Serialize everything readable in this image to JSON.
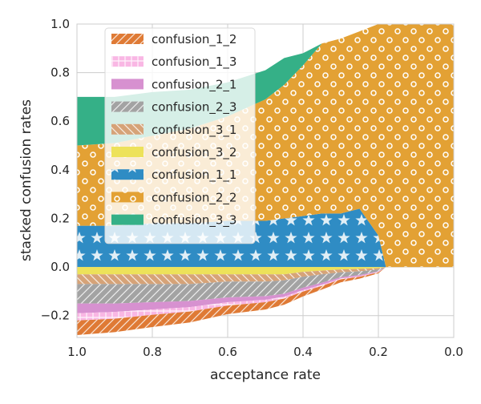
{
  "chart_data": {
    "type": "area",
    "subtype": "stacked area with positive and negative stacks",
    "xlabel": "acceptance rate",
    "ylabel": "stacked confusion rates",
    "xlim": [
      1.0,
      0.0
    ],
    "ylim": [
      -0.29,
      1.0
    ],
    "xticks": [
      1.0,
      0.8,
      0.6,
      0.4,
      0.2,
      0.0
    ],
    "xtick_labels": [
      "1.0",
      "0.8",
      "0.6",
      "0.4",
      "0.2",
      "0.0"
    ],
    "yticks": [
      -0.2,
      0.0,
      0.2,
      0.4,
      0.6,
      0.8,
      1.0
    ],
    "ytick_labels": [
      "−0.2",
      "0.0",
      "0.2",
      "0.4",
      "0.6",
      "0.8",
      "1.0"
    ],
    "grid": true,
    "legend_position": "upper-left",
    "x": [
      1.0,
      0.9,
      0.8,
      0.7,
      0.6,
      0.5,
      0.45,
      0.4,
      0.35,
      0.3,
      0.25,
      0.2,
      0.18,
      0.15,
      0.1,
      0.05,
      0.0
    ],
    "positive_series": [
      {
        "name": "confusion_1_1",
        "color": "#2f8cc4",
        "hatch": "stars",
        "values": [
          0.17,
          0.17,
          0.18,
          0.18,
          0.19,
          0.19,
          0.2,
          0.21,
          0.22,
          0.22,
          0.24,
          0.13,
          0.0,
          0.0,
          0.0,
          0.0,
          0.0
        ]
      },
      {
        "name": "confusion_2_2",
        "color": "#e3a134",
        "hatch": "circles",
        "values": [
          0.33,
          0.34,
          0.36,
          0.39,
          0.43,
          0.5,
          0.55,
          0.62,
          0.7,
          0.72,
          0.73,
          0.87,
          1.0,
          1.0,
          1.0,
          1.0,
          1.0
        ]
      },
      {
        "name": "confusion_3_3",
        "color": "#35b087",
        "hatch": "none",
        "values": [
          0.2,
          0.19,
          0.18,
          0.16,
          0.14,
          0.12,
          0.11,
          0.05,
          0.0,
          0.0,
          0.0,
          0.0,
          0.0,
          0.0,
          0.0,
          0.0,
          0.0
        ]
      }
    ],
    "negative_series": [
      {
        "name": "confusion_3_2",
        "color": "#ede25a",
        "hatch": "none",
        "values": [
          0.03,
          0.03,
          0.03,
          0.03,
          0.03,
          0.03,
          0.03,
          0.02,
          0.015,
          0.01,
          0.008,
          0.005,
          0.0,
          0.0,
          0.0,
          0.0,
          0.0
        ]
      },
      {
        "name": "confusion_3_1",
        "color": "#d6a378",
        "hatch": "backslash",
        "values": [
          0.04,
          0.04,
          0.04,
          0.04,
          0.03,
          0.03,
          0.025,
          0.02,
          0.015,
          0.012,
          0.01,
          0.005,
          0.0,
          0.0,
          0.0,
          0.0,
          0.0
        ]
      },
      {
        "name": "confusion_2_3",
        "color": "#a3a3a3",
        "hatch": "slash",
        "values": [
          0.08,
          0.08,
          0.075,
          0.07,
          0.065,
          0.06,
          0.055,
          0.045,
          0.035,
          0.02,
          0.015,
          0.008,
          0.0,
          0.0,
          0.0,
          0.0,
          0.0
        ]
      },
      {
        "name": "confusion_2_1",
        "color": "#d791d0",
        "hatch": "none",
        "values": [
          0.04,
          0.035,
          0.03,
          0.025,
          0.02,
          0.015,
          0.012,
          0.01,
          0.008,
          0.005,
          0.004,
          0.002,
          0.0,
          0.0,
          0.0,
          0.0,
          0.0
        ]
      },
      {
        "name": "confusion_1_3",
        "color": "#f9b7e4",
        "hatch": "cross",
        "values": [
          0.03,
          0.028,
          0.022,
          0.018,
          0.014,
          0.01,
          0.008,
          0.006,
          0.005,
          0.004,
          0.003,
          0.002,
          0.0,
          0.0,
          0.0,
          0.0,
          0.0
        ]
      },
      {
        "name": "confusion_1_2",
        "color": "#df7a35",
        "hatch": "slash",
        "values": [
          0.06,
          0.055,
          0.05,
          0.045,
          0.035,
          0.03,
          0.025,
          0.02,
          0.015,
          0.012,
          0.008,
          0.004,
          0.0,
          0.0,
          0.0,
          0.0,
          0.0
        ]
      }
    ],
    "legend": [
      {
        "name": "confusion_1_2",
        "color": "#df7a35",
        "hatch": "slash"
      },
      {
        "name": "confusion_1_3",
        "color": "#f9b7e4",
        "hatch": "cross"
      },
      {
        "name": "confusion_2_1",
        "color": "#d791d0",
        "hatch": "none"
      },
      {
        "name": "confusion_2_3",
        "color": "#a3a3a3",
        "hatch": "slash"
      },
      {
        "name": "confusion_3_1",
        "color": "#d6a378",
        "hatch": "backslash"
      },
      {
        "name": "confusion_3_2",
        "color": "#ede25a",
        "hatch": "none"
      },
      {
        "name": "confusion_1_1",
        "color": "#2f8cc4",
        "hatch": "stars"
      },
      {
        "name": "confusion_2_2",
        "color": "#e3a134",
        "hatch": "circles"
      },
      {
        "name": "confusion_3_3",
        "color": "#35b087",
        "hatch": "none"
      }
    ]
  }
}
